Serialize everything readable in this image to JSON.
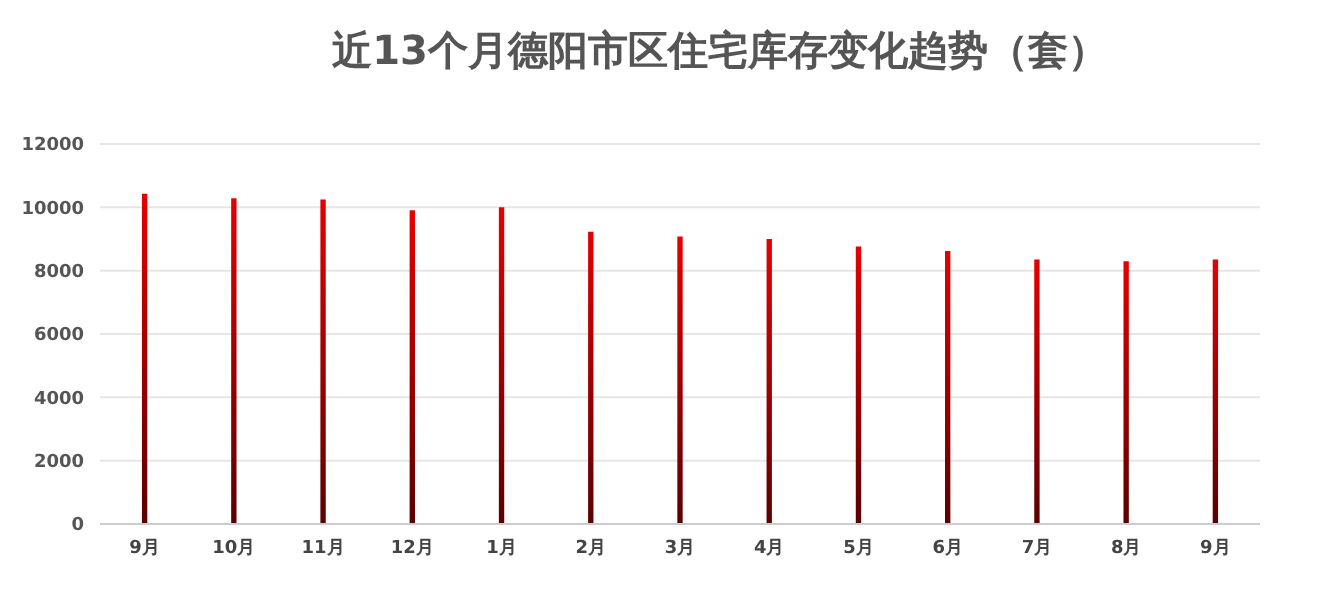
{
  "chart_data": {
    "type": "bar",
    "title": "近13个月德阳市区住宅库存变化趋势（套）",
    "categories": [
      "9月",
      "10月",
      "11月",
      "12月",
      "1月",
      "2月",
      "3月",
      "4月",
      "5月",
      "6月",
      "7月",
      "8月",
      "9月"
    ],
    "values": [
      10430,
      10290,
      10250,
      9910,
      10000,
      9230,
      9080,
      9000,
      8760,
      8620,
      8350,
      8300,
      8350
    ],
    "color": "#e60000",
    "ylim": [
      0,
      12000
    ],
    "yticks": [
      0,
      2000,
      4000,
      6000,
      8000,
      10000,
      12000
    ],
    "grid": "y"
  }
}
